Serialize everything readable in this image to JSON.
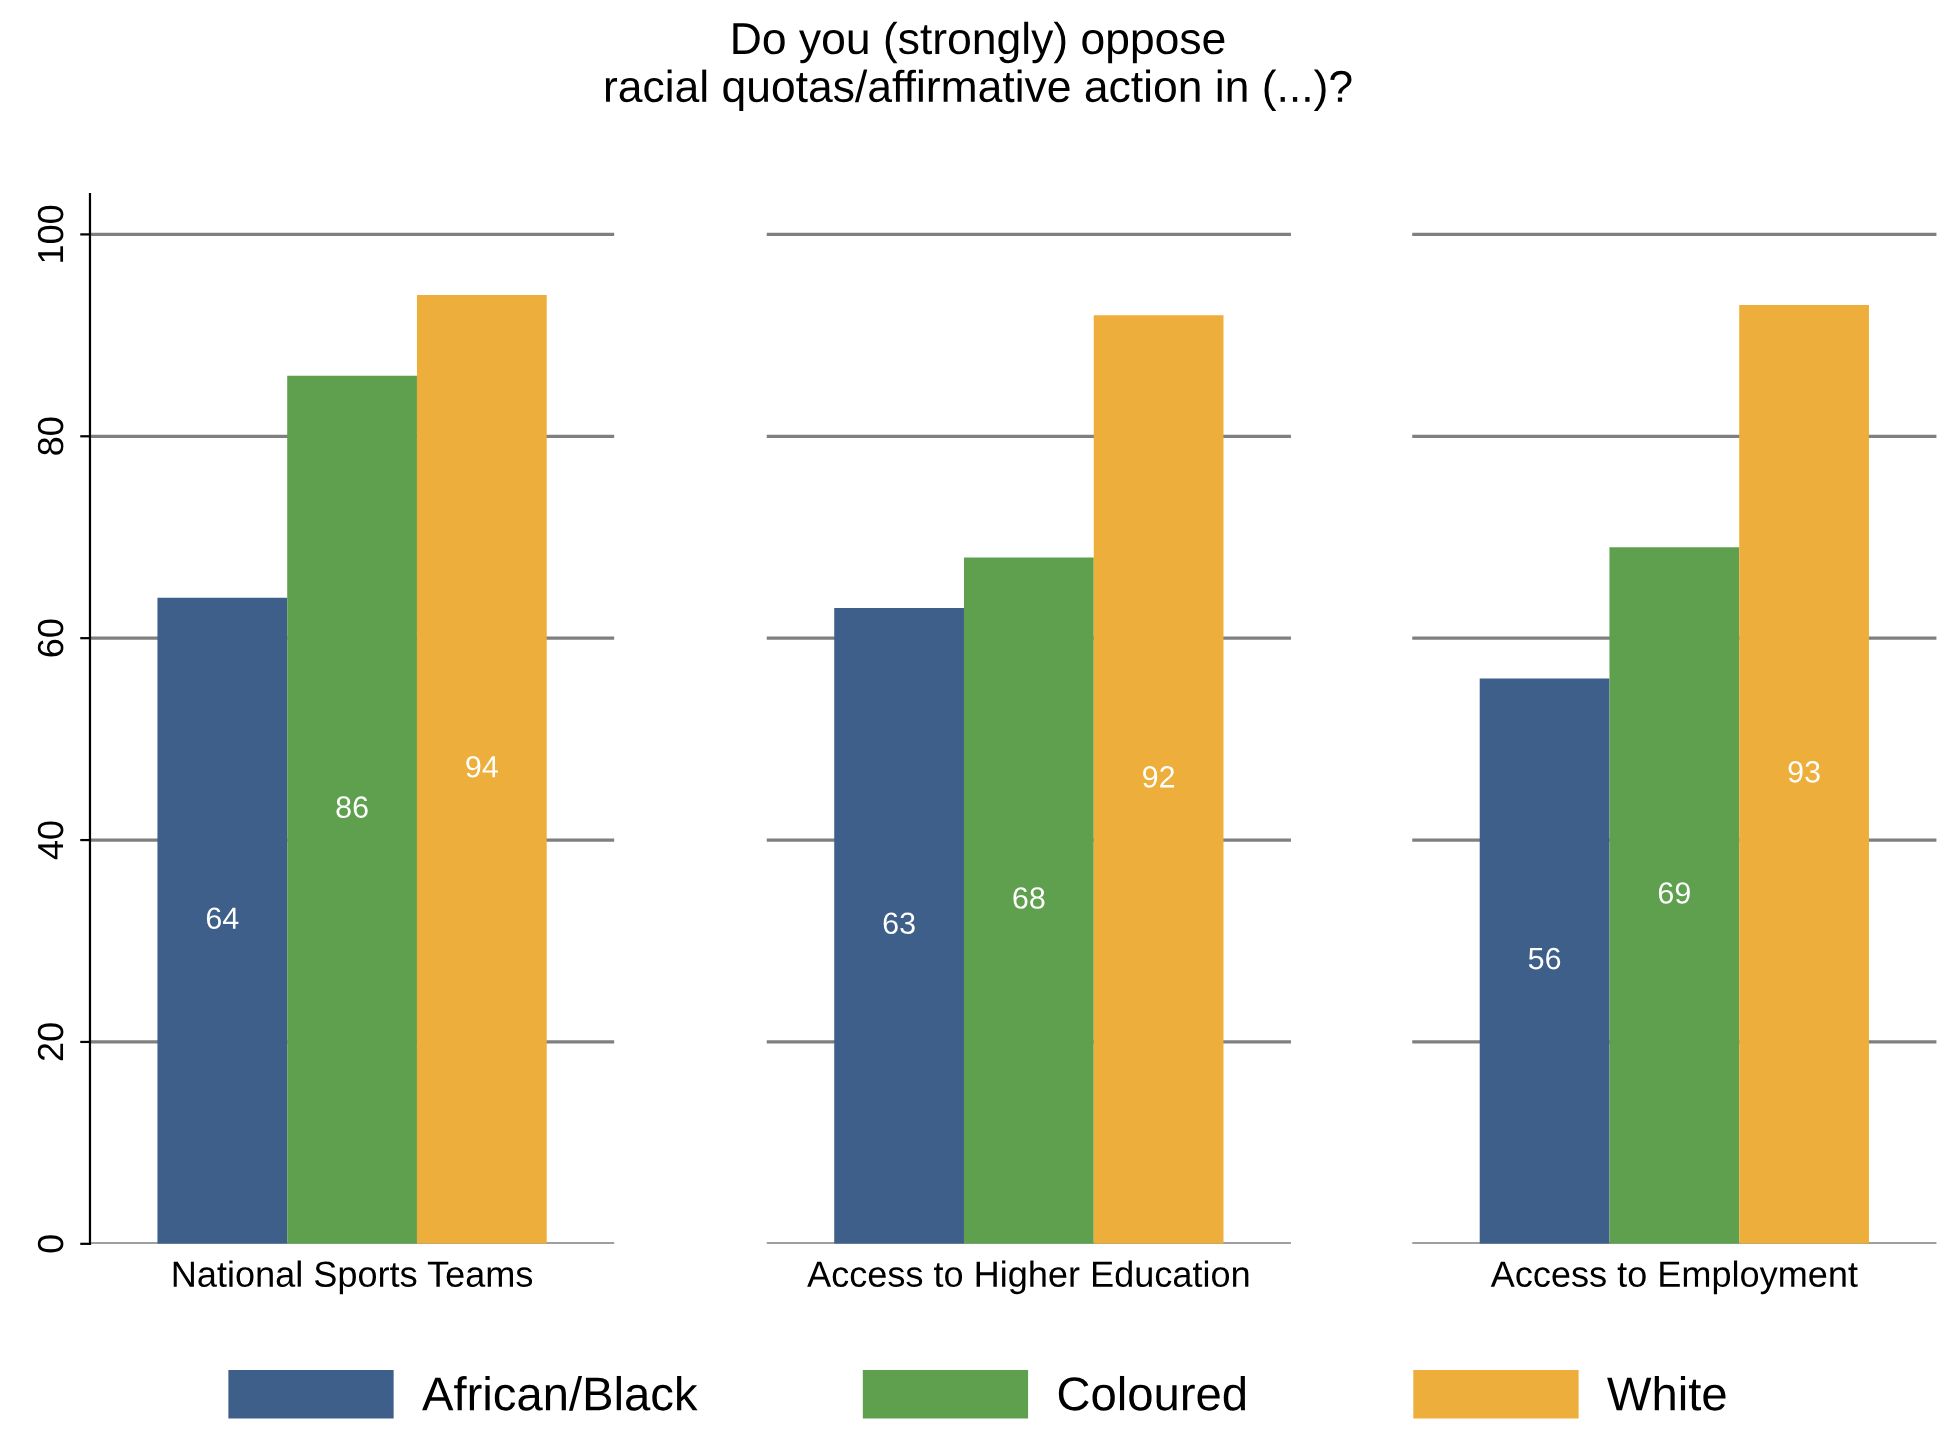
{
  "chart_data": {
    "type": "bar",
    "title": "Do you (strongly) oppose\nracial quotas/affirmative action in (...)?",
    "categories": [
      "National Sports Teams",
      "Access to Higher Education",
      "Access to Employment"
    ],
    "series": [
      {
        "name": "African/Black",
        "color": "#3e5f8a",
        "values": [
          64,
          63,
          56
        ]
      },
      {
        "name": "Coloured",
        "color": "#5fa04e",
        "values": [
          86,
          68,
          69
        ]
      },
      {
        "name": "White",
        "color": "#edae3b",
        "values": [
          94,
          92,
          93
        ]
      }
    ],
    "ylim": [
      0,
      104
    ],
    "yticks": [
      0,
      20,
      40,
      60,
      80,
      100
    ],
    "grid": "y",
    "legend": "bottom",
    "data_labels": true
  }
}
